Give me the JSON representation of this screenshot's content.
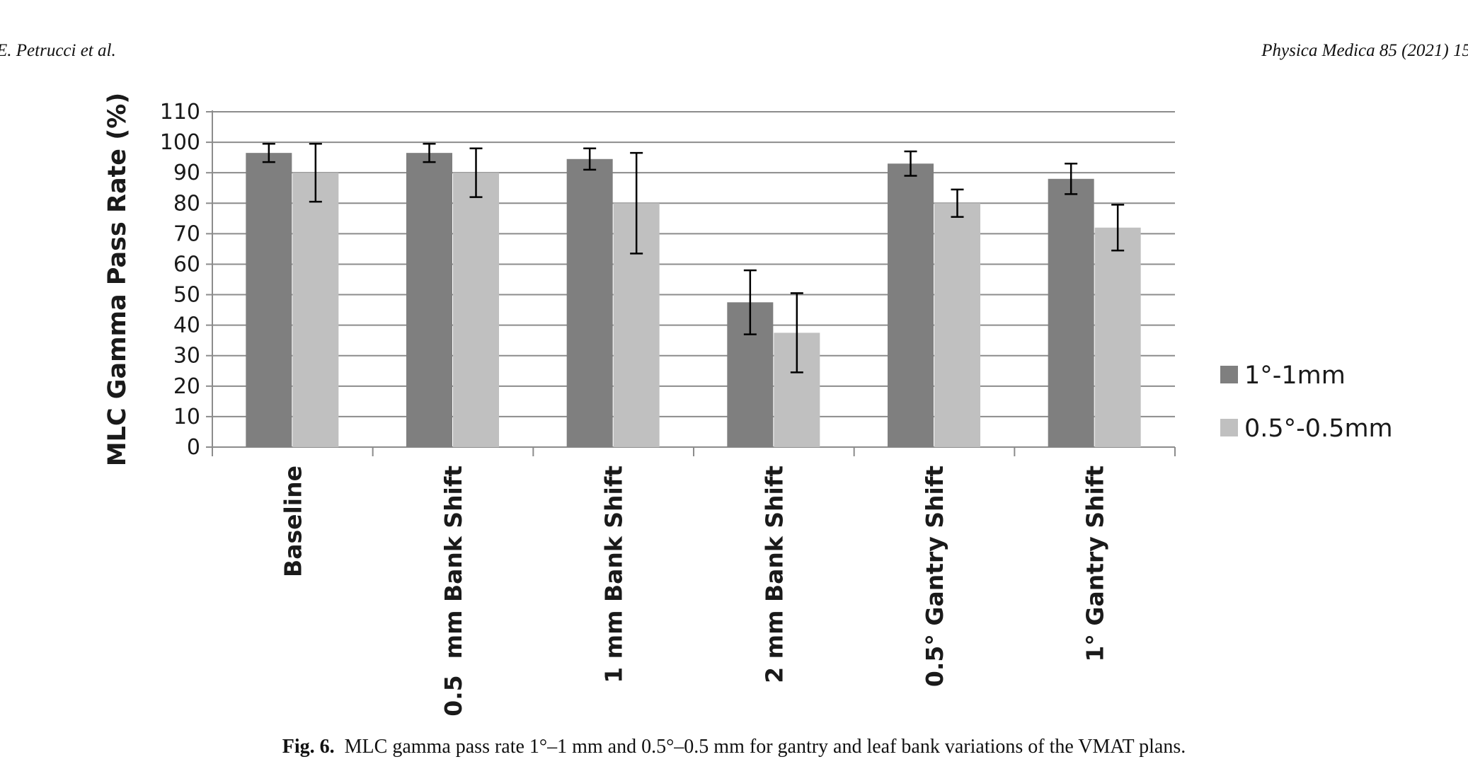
{
  "header": {
    "authors": "E. Petrucci et al.",
    "journal": "Physica Medica 85 (2021) 15"
  },
  "caption": {
    "label": "Fig. 6.",
    "text": "MLC gamma pass rate 1°–1 mm and 0.5°–0.5 mm for gantry and leaf bank variations of the VMAT plans."
  },
  "colors": {
    "series1": "#7f7f7f",
    "series2": "#c0c0c0",
    "grid": "#8c8c8c",
    "text": "#1a1a1a"
  },
  "chart_data": {
    "type": "bar",
    "ylabel": "MLC Gamma Pass Rate (%)",
    "xlabel": "",
    "ylim": [
      0,
      110
    ],
    "yticks": [
      0,
      10,
      20,
      30,
      40,
      50,
      60,
      70,
      80,
      90,
      100,
      110
    ],
    "grid": true,
    "legend_position": "right",
    "categories": [
      "Baseline",
      "0.5  mm Bank Shift",
      "1 mm Bank Shift",
      "2 mm Bank Shift",
      "0.5° Gantry Shift",
      "1° Gantry Shift"
    ],
    "series": [
      {
        "name": "1°-1mm",
        "values": [
          96.5,
          96.5,
          94.5,
          47.5,
          93,
          88
        ],
        "error": [
          3,
          3,
          3.5,
          10.5,
          4,
          5
        ]
      },
      {
        "name": "0.5°-0.5mm",
        "values": [
          90,
          90,
          80,
          37.5,
          80,
          72
        ],
        "error": [
          9.5,
          8,
          16.5,
          13,
          4.5,
          7.5
        ]
      }
    ]
  }
}
